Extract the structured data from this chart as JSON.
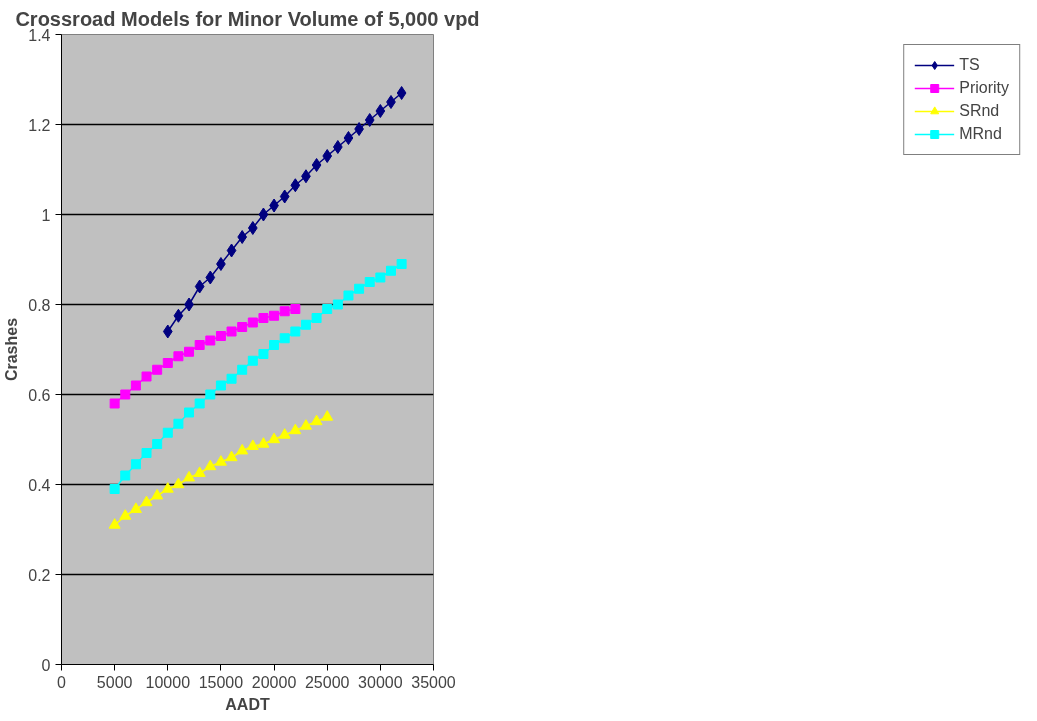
{
  "chart_data": {
    "type": "line",
    "title": "Crossroad Models for Minor Volume of 5,000 vpd",
    "xlabel": "AADT",
    "ylabel": "Crashes",
    "xlim": [
      0,
      35000
    ],
    "xticks": [
      0,
      5000,
      10000,
      15000,
      20000,
      25000,
      30000,
      35000
    ],
    "ylim": [
      0,
      1.4
    ],
    "yticks": [
      0,
      0.2,
      0.4,
      0.6,
      0.8,
      1,
      1.2,
      1.4
    ],
    "grid": "y",
    "legend": "right",
    "series": [
      {
        "name": "TS",
        "color": "#000080",
        "marker": "diamond",
        "x": [
          10000,
          11000,
          12000,
          13000,
          14000,
          15000,
          16000,
          17000,
          18000,
          19000,
          20000,
          21000,
          22000,
          23000,
          24000,
          25000,
          26000,
          27000,
          28000,
          29000,
          30000,
          31000,
          32000
        ],
        "values": [
          0.74,
          0.775,
          0.8,
          0.84,
          0.86,
          0.89,
          0.92,
          0.95,
          0.97,
          1.0,
          1.02,
          1.04,
          1.065,
          1.085,
          1.11,
          1.13,
          1.15,
          1.17,
          1.19,
          1.21,
          1.23,
          1.25,
          1.27
        ]
      },
      {
        "name": "Priority",
        "color": "#ff00ff",
        "marker": "square",
        "x": [
          5000,
          6000,
          7000,
          8000,
          9000,
          10000,
          11000,
          12000,
          13000,
          14000,
          15000,
          16000,
          17000,
          18000,
          19000,
          20000,
          21000,
          22000
        ],
        "values": [
          0.58,
          0.6,
          0.62,
          0.64,
          0.655,
          0.67,
          0.685,
          0.695,
          0.71,
          0.72,
          0.73,
          0.74,
          0.75,
          0.76,
          0.77,
          0.775,
          0.785,
          0.79
        ]
      },
      {
        "name": "SRnd",
        "color": "#ffff00",
        "marker": "triangle",
        "x": [
          5000,
          6000,
          7000,
          8000,
          9000,
          10000,
          11000,
          12000,
          13000,
          14000,
          15000,
          16000,
          17000,
          18000,
          19000,
          20000,
          21000,
          22000,
          23000,
          24000,
          25000
        ],
        "values": [
          0.31,
          0.33,
          0.345,
          0.36,
          0.375,
          0.39,
          0.4,
          0.415,
          0.425,
          0.44,
          0.45,
          0.46,
          0.475,
          0.485,
          0.49,
          0.5,
          0.51,
          0.52,
          0.53,
          0.54,
          0.55
        ]
      },
      {
        "name": "MRnd",
        "color": "#00ffff",
        "marker": "square",
        "x": [
          5000,
          6000,
          7000,
          8000,
          9000,
          10000,
          11000,
          12000,
          13000,
          14000,
          15000,
          16000,
          17000,
          18000,
          19000,
          20000,
          21000,
          22000,
          23000,
          24000,
          25000,
          26000,
          27000,
          28000,
          29000,
          30000,
          31000,
          32000
        ],
        "values": [
          0.39,
          0.42,
          0.445,
          0.47,
          0.49,
          0.515,
          0.535,
          0.56,
          0.58,
          0.6,
          0.62,
          0.635,
          0.655,
          0.675,
          0.69,
          0.71,
          0.725,
          0.74,
          0.755,
          0.77,
          0.79,
          0.8,
          0.82,
          0.835,
          0.85,
          0.86,
          0.875,
          0.89
        ]
      }
    ]
  }
}
